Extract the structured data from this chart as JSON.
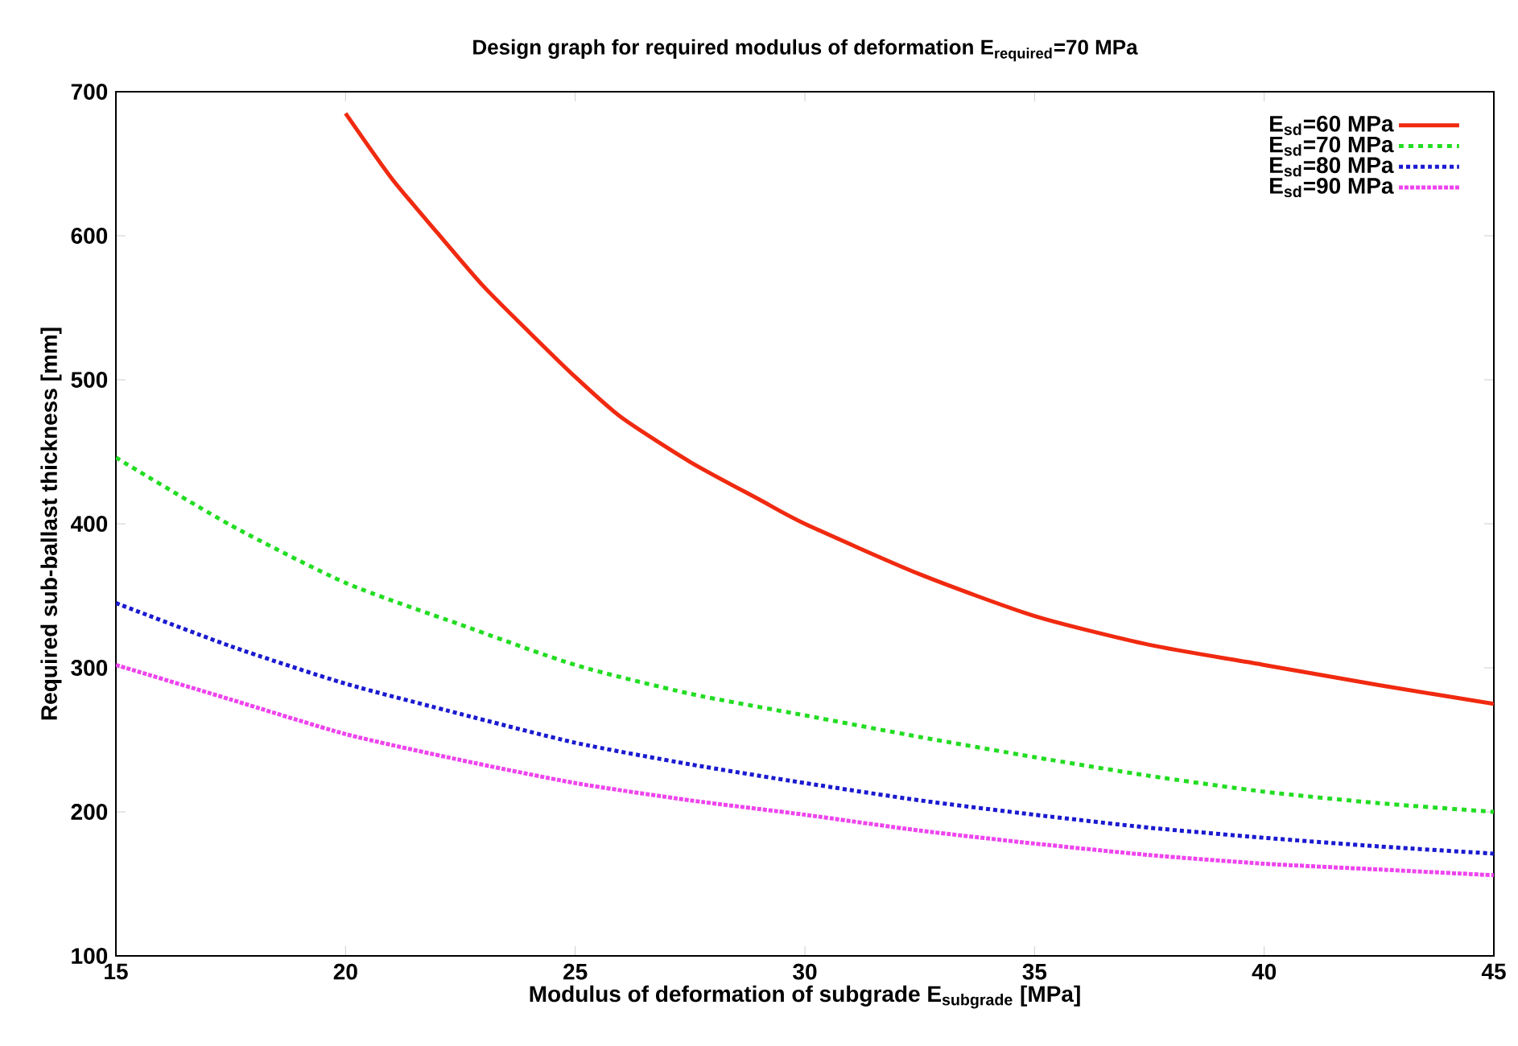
{
  "chart_data": {
    "type": "line",
    "title": "Design graph for required modulus of deformation  E$_{required}$=70 MPa",
    "xlabel": "Modulus of deformation of subgrade E$_{subgrade}$ [MPa]",
    "ylabel": "Required sub-ballast thickness [mm]",
    "xlim": [
      15,
      45
    ],
    "xticks": [
      15,
      20,
      25,
      30,
      35,
      40,
      45
    ],
    "ylim": [
      100,
      700
    ],
    "yticks": [
      100,
      200,
      300,
      400,
      500,
      600,
      700
    ],
    "grid": false,
    "legend": "top right",
    "series": [
      {
        "name": "E$_{sd}$=60 MPa",
        "color": "#f02a10",
        "line_style": "solid",
        "x": [
          20,
          21,
          22,
          23,
          24,
          25,
          26,
          27.5,
          29,
          30,
          32.5,
          35,
          37.5,
          40,
          42.5,
          45
        ],
        "values": [
          685,
          640,
          602,
          565,
          533,
          502,
          474,
          443,
          417,
          400,
          365,
          336,
          316,
          302,
          288,
          275
        ]
      },
      {
        "name": "E$_{sd}$=70 MPa",
        "color": "#22dd22",
        "line_style": "dashed",
        "x": [
          15,
          17.5,
          20,
          22.5,
          25,
          27.5,
          30,
          32.5,
          35,
          37.5,
          40,
          42.5,
          45
        ],
        "values": [
          446,
          399,
          359,
          330,
          302,
          282,
          267,
          252,
          238,
          225,
          214,
          206,
          200
        ]
      },
      {
        "name": "E$_{sd}$=80 MPa",
        "color": "#1a1ad0",
        "line_style": "dotted",
        "x": [
          15,
          17.5,
          20,
          22.5,
          25,
          27.5,
          30,
          32.5,
          35,
          37.5,
          40,
          42.5,
          45
        ],
        "values": [
          345,
          315,
          289,
          268,
          248,
          233,
          220,
          208,
          198,
          189,
          182,
          176,
          171
        ]
      },
      {
        "name": "E$_{sd}$=90 MPa",
        "color": "#ee44ee",
        "line_style": "densely dotted",
        "x": [
          15,
          17.5,
          20,
          22.5,
          25,
          27.5,
          30,
          32.5,
          35,
          37.5,
          40,
          42.5,
          45
        ],
        "values": [
          302,
          278,
          254,
          236,
          220,
          208,
          198,
          187,
          178,
          170,
          164,
          160,
          156
        ]
      }
    ]
  }
}
